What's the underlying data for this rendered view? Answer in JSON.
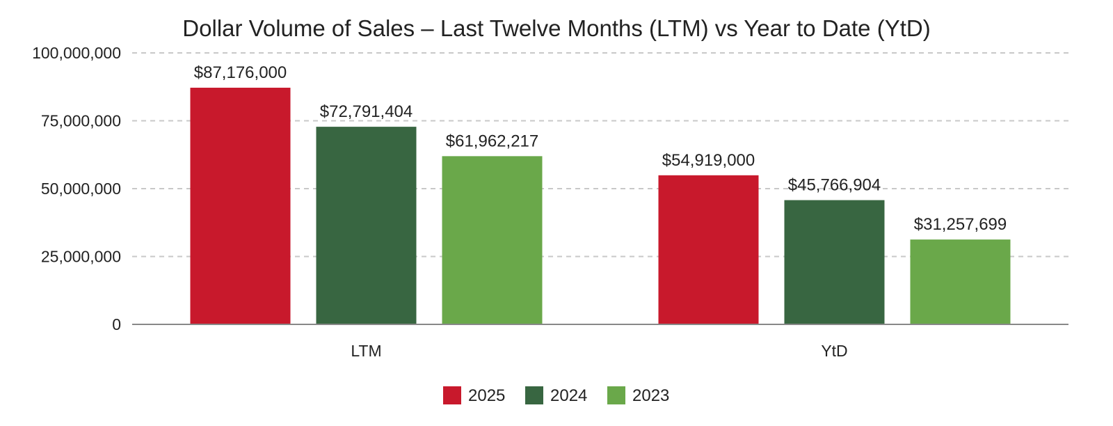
{
  "chart_data": {
    "type": "bar",
    "title": "Dollar Volume of Sales – Last Twelve Months (LTM) vs Year to Date (YtD)",
    "categories": [
      "LTM",
      "YtD"
    ],
    "series": [
      {
        "name": "2025",
        "color": "#c8192c",
        "values": [
          87176000,
          54919000
        ],
        "labels": [
          "$87,176,000",
          "$54,919,000"
        ]
      },
      {
        "name": "2024",
        "color": "#386641",
        "values": [
          72791404,
          45766904
        ],
        "labels": [
          "$72,791,404",
          "$45,766,904"
        ]
      },
      {
        "name": "2023",
        "color": "#6aa84a",
        "values": [
          61962217,
          31257699
        ],
        "labels": [
          "$61,962,217",
          "$31,257,699"
        ]
      }
    ],
    "ylim": [
      0,
      100000000
    ],
    "yticks": [
      0,
      25000000,
      50000000,
      75000000,
      100000000
    ],
    "ytick_labels": [
      "0",
      "25,000,000",
      "50,000,000",
      "75,000,000",
      "100,000,000"
    ],
    "xlabel": "",
    "ylabel": "",
    "grid": true,
    "legend_position": "bottom"
  }
}
